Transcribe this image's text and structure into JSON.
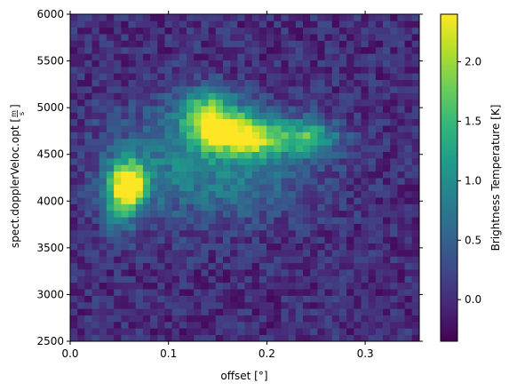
{
  "chart_data": {
    "type": "heatmap",
    "title": "",
    "xlabel": "offset [°]",
    "ylabel": "spect.dopplerVeloc.opt [m/s]",
    "ylabel_parts": {
      "main": "spect.dopplerVeloc.opt [",
      "num": "m",
      "den": "s",
      "close": "]"
    },
    "xlim": [
      0.0,
      0.355
    ],
    "ylim": [
      2500,
      6000
    ],
    "xticks": [
      0.0,
      0.1,
      0.2,
      0.3
    ],
    "xtick_labels": [
      "0.0",
      "0.1",
      "0.2",
      "0.3"
    ],
    "yticks": [
      2500,
      3000,
      3500,
      4000,
      4500,
      5000,
      5500,
      6000
    ],
    "ytick_labels": [
      "2500",
      "3000",
      "3500",
      "4000",
      "4500",
      "5000",
      "5500",
      "6000"
    ],
    "grid": {
      "nx": 48,
      "ny": 50
    },
    "colormap": "viridis",
    "noise_amplitude": 0.28,
    "background_level": 0.0,
    "features": [
      {
        "x": 0.06,
        "y": 4180,
        "sx": 0.013,
        "sy": 170,
        "amp": 2.2
      },
      {
        "x": 0.05,
        "y": 4000,
        "sx": 0.012,
        "sy": 250,
        "amp": 0.9
      },
      {
        "x": 0.14,
        "y": 4950,
        "sx": 0.02,
        "sy": 170,
        "amp": 1.6
      },
      {
        "x": 0.15,
        "y": 4720,
        "sx": 0.016,
        "sy": 130,
        "amp": 1.5
      },
      {
        "x": 0.185,
        "y": 4700,
        "sx": 0.018,
        "sy": 160,
        "amp": 1.8
      },
      {
        "x": 0.24,
        "y": 4680,
        "sx": 0.022,
        "sy": 130,
        "amp": 1.4
      },
      {
        "x": 0.17,
        "y": 4400,
        "sx": 0.06,
        "sy": 400,
        "amp": 0.7
      },
      {
        "x": 0.09,
        "y": 4400,
        "sx": 0.05,
        "sy": 450,
        "amp": 0.45
      }
    ],
    "colorbar": {
      "label": "Brightness Temperature [K]",
      "range": [
        -0.35,
        2.4
      ],
      "ticks": [
        0.0,
        0.5,
        1.0,
        1.5,
        2.0
      ],
      "tick_labels": [
        "0.0",
        "0.5",
        "1.0",
        "1.5",
        "2.0"
      ]
    }
  }
}
